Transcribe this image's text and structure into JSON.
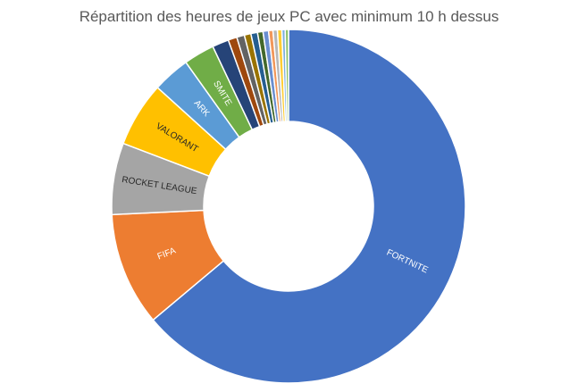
{
  "chart_data": {
    "type": "pie",
    "variant": "donut",
    "title": "Répartition des heures de jeux PC avec minimum 10 h dessus",
    "categories": [
      "FORTNITE",
      "FIFA",
      "ROCKET LEAGUE",
      "VALORANT",
      "ARK",
      "SMITE",
      "",
      "",
      "",
      "",
      "",
      "",
      "",
      "",
      "",
      "",
      "",
      ""
    ],
    "values": [
      63.5,
      10.3,
      6.5,
      5.9,
      3.4,
      2.8,
      1.5,
      0.8,
      0.7,
      0.6,
      0.6,
      0.5,
      0.5,
      0.4,
      0.4,
      0.4,
      0.3,
      0.3
    ],
    "colors": [
      "#4472C4",
      "#ED7D31",
      "#A5A5A5",
      "#FFC000",
      "#5B9BD5",
      "#70AD47",
      "#264478",
      "#9E480E",
      "#636363",
      "#997300",
      "#255E91",
      "#43682B",
      "#698ED0",
      "#F1975A",
      "#B7B7B7",
      "#FFCD33",
      "#7CAFDD",
      "#8CC168"
    ],
    "label_colors": [
      "#ffffff",
      "#ffffff",
      "#262626",
      "#262626",
      "#ffffff",
      "#ffffff"
    ],
    "legend": "none"
  }
}
